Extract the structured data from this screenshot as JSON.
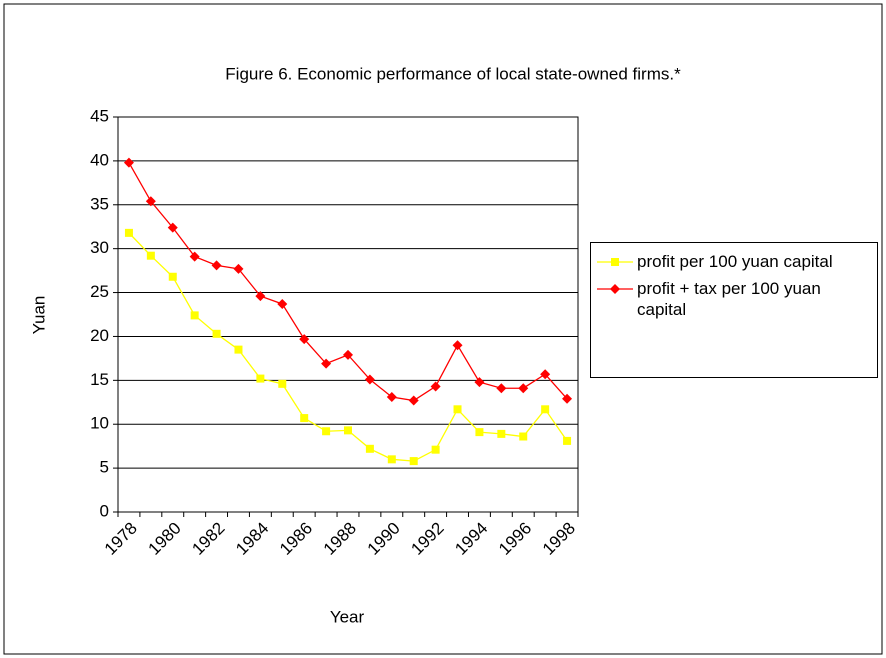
{
  "chart_data": {
    "type": "line",
    "title": "Figure 6. Economic performance of local state-owned firms.*",
    "x_label": "Year",
    "y_label": "Yuan",
    "categories": [
      "1978",
      null,
      "1980",
      null,
      "1982",
      null,
      "1984",
      null,
      "1986",
      null,
      "1988",
      null,
      "1990",
      null,
      "1992",
      null,
      "1994",
      null,
      "1996",
      null,
      "1998"
    ],
    "series": [
      {
        "name": "profit per 100 yuan capital",
        "color": "#ffff00",
        "marker": "square",
        "values": [
          31.8,
          29.2,
          26.8,
          22.4,
          20.3,
          18.5,
          15.2,
          14.6,
          10.7,
          9.2,
          9.3,
          7.2,
          6.0,
          5.8,
          7.1,
          11.7,
          9.1,
          8.9,
          8.6,
          11.7,
          8.1
        ]
      },
      {
        "name": "profit + tax per 100 yuan capital",
        "color": "#ff0000",
        "marker": "diamond",
        "values": [
          39.8,
          35.4,
          32.4,
          29.1,
          28.1,
          27.7,
          24.6,
          23.7,
          19.7,
          16.9,
          17.9,
          15.1,
          13.1,
          12.7,
          14.3,
          19.0,
          14.8,
          14.1,
          14.1,
          15.7,
          12.9
        ]
      }
    ],
    "ylim": [
      0,
      45
    ],
    "yticks": [
      0,
      5,
      10,
      15,
      20,
      25,
      30,
      35,
      40,
      45
    ],
    "grid": true,
    "legend": "right"
  }
}
